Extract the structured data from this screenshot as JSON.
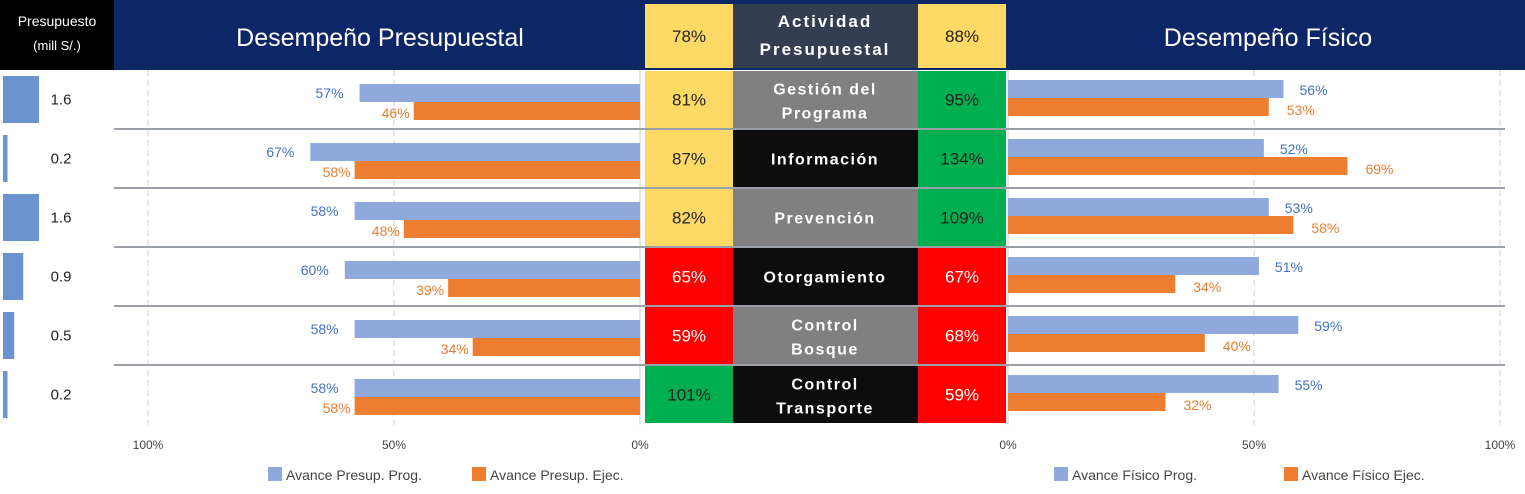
{
  "header": {
    "budget_label_line1": "Presupuesto",
    "budget_label_line2": "(mill S/.)",
    "left_title": "Desempeño Presupuestal",
    "right_title": "Desempeño Físico",
    "center_title_line1": "Actividad",
    "center_title_line2": "Presupuestal",
    "total_budget_pct": "78%",
    "total_physical_pct": "88%"
  },
  "colors": {
    "navy": "#0d2766",
    "prog_blue": "#8fa9dc",
    "ejec_orange": "#ed7d31",
    "budget_bar": "#6a93cf",
    "yellow": "#ffd966",
    "green": "#00b050",
    "red": "#ff0000",
    "gray": "#808080",
    "black": "#0d0d0d",
    "header_center": "#333f50",
    "blue_label": "#4472c4"
  },
  "chart_data": [
    {
      "type": "bar",
      "orientation": "horizontal",
      "title": "Desempeño Presupuestal",
      "categories": [
        "Gestión del Programa",
        "Información",
        "Prevención",
        "Otorgamiento",
        "Control Bosque",
        "Control Transporte"
      ],
      "series": [
        {
          "name": "Avance Presup. Prog.",
          "values": [
            57,
            67,
            58,
            60,
            58,
            58
          ]
        },
        {
          "name": "Avance Presup. Ejec.",
          "values": [
            46,
            58,
            48,
            39,
            34,
            58
          ]
        }
      ],
      "xlim": [
        0,
        100
      ],
      "x_reversed": true,
      "ticks": [
        "100%",
        "50%",
        "0%"
      ],
      "legend": "bottom"
    },
    {
      "type": "bar",
      "orientation": "horizontal",
      "title": "Desempeño Físico",
      "categories": [
        "Gestión del Programa",
        "Información",
        "Prevención",
        "Otorgamiento",
        "Control Bosque",
        "Control Transporte"
      ],
      "series": [
        {
          "name": "Avance Físico Prog.",
          "values": [
            56,
            52,
            53,
            51,
            59,
            55
          ]
        },
        {
          "name": "Avance Físico Ejec.",
          "values": [
            53,
            69,
            58,
            34,
            40,
            32
          ]
        }
      ],
      "xlim": [
        0,
        100
      ],
      "ticks": [
        "0%",
        "50%",
        "100%"
      ],
      "legend": "bottom"
    },
    {
      "type": "bar",
      "title": "Presupuesto (mill S/.)",
      "categories": [
        "Gestión del Programa",
        "Información",
        "Prevención",
        "Otorgamiento",
        "Control Bosque",
        "Control Transporte"
      ],
      "values": [
        1.6,
        0.2,
        1.6,
        0.9,
        0.5,
        0.2
      ],
      "value_labels": [
        "1.6",
        "0.2",
        "1.6",
        "0.9",
        "0.5",
        "0.2"
      ]
    }
  ],
  "rows": [
    {
      "line1": "Gestión del",
      "line2": "Programa",
      "budget_pct": "81%",
      "budget_color": "#ffd966",
      "phys_pct": "95%",
      "phys_color": "#00b050",
      "label_bg": "#808080"
    },
    {
      "line1": "Información",
      "line2": "",
      "budget_pct": "87%",
      "budget_color": "#ffd966",
      "phys_pct": "134%",
      "phys_color": "#00b050",
      "label_bg": "#0d0d0d"
    },
    {
      "line1": "Prevención",
      "line2": "",
      "budget_pct": "82%",
      "budget_color": "#ffd966",
      "phys_pct": "109%",
      "phys_color": "#00b050",
      "label_bg": "#808080"
    },
    {
      "line1": "Otorgamiento",
      "line2": "",
      "budget_pct": "65%",
      "budget_color": "#ff0000",
      "phys_pct": "67%",
      "phys_color": "#ff0000",
      "label_bg": "#0d0d0d"
    },
    {
      "line1": "Control",
      "line2": "Bosque",
      "budget_pct": "59%",
      "budget_color": "#ff0000",
      "phys_pct": "68%",
      "phys_color": "#ff0000",
      "label_bg": "#808080"
    },
    {
      "line1": "Control",
      "line2": "Transporte",
      "budget_pct": "101%",
      "budget_color": "#00b050",
      "phys_pct": "59%",
      "phys_color": "#ff0000",
      "label_bg": "#0d0d0d"
    }
  ],
  "left_value_labels": {
    "prog": [
      "57%",
      "67%",
      "58%",
      "60%",
      "58%",
      "58%"
    ],
    "ejec": [
      "46%",
      "58%",
      "48%",
      "39%",
      "34%",
      "58%"
    ]
  },
  "right_value_labels": {
    "prog": [
      "56%",
      "52%",
      "53%",
      "51%",
      "59%",
      "55%"
    ],
    "ejec": [
      "53%",
      "69%",
      "58%",
      "34%",
      "40%",
      "32%"
    ]
  },
  "left_ticks": [
    "100%",
    "50%",
    "0%"
  ],
  "right_ticks": [
    "0%",
    "50%",
    "100%"
  ],
  "legend": {
    "left_prog": "Avance Presup. Prog.",
    "left_ejec": "Avance Presup. Ejec.",
    "right_prog": "Avance Físico Prog.",
    "right_ejec": "Avance Físico Ejec."
  }
}
